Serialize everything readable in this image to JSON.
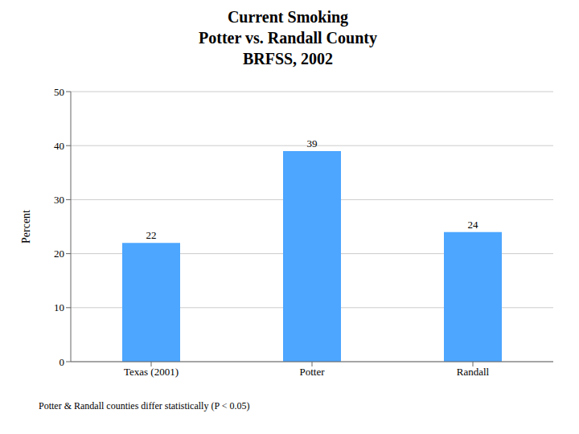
{
  "chart_data": {
    "type": "bar",
    "title": "Current Smoking\nPotter vs. Randall County\nBRFSS, 2002",
    "ylabel": "Percent",
    "categories": [
      "Texas (2001)",
      "Potter",
      "Randall"
    ],
    "values": [
      22,
      39,
      24
    ],
    "color": "#4DA6FF",
    "ylim": [
      0,
      50
    ],
    "yticks": [
      0,
      10,
      20,
      30,
      40,
      50
    ],
    "grid": true,
    "data_labels": true,
    "annotations": [
      "Potter & Randall counties differ statistically (P < 0.05)"
    ]
  }
}
